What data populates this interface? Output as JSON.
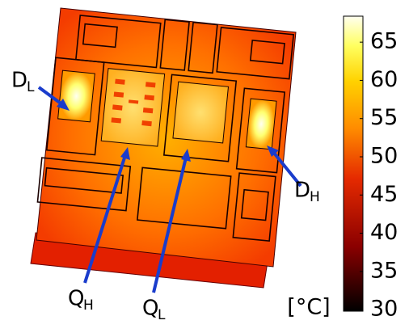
{
  "labels": [
    {
      "main": "D",
      "sub": "L"
    },
    {
      "main": "Q",
      "sub": "H"
    },
    {
      "main": "Q",
      "sub": "L"
    },
    {
      "main": "D",
      "sub": "H"
    }
  ],
  "colorbar": {
    "unit": "[°C]",
    "lim": [
      29.8,
      68.4
    ],
    "ticks": [
      30,
      35,
      40,
      45,
      50,
      55,
      60,
      65
    ]
  }
}
